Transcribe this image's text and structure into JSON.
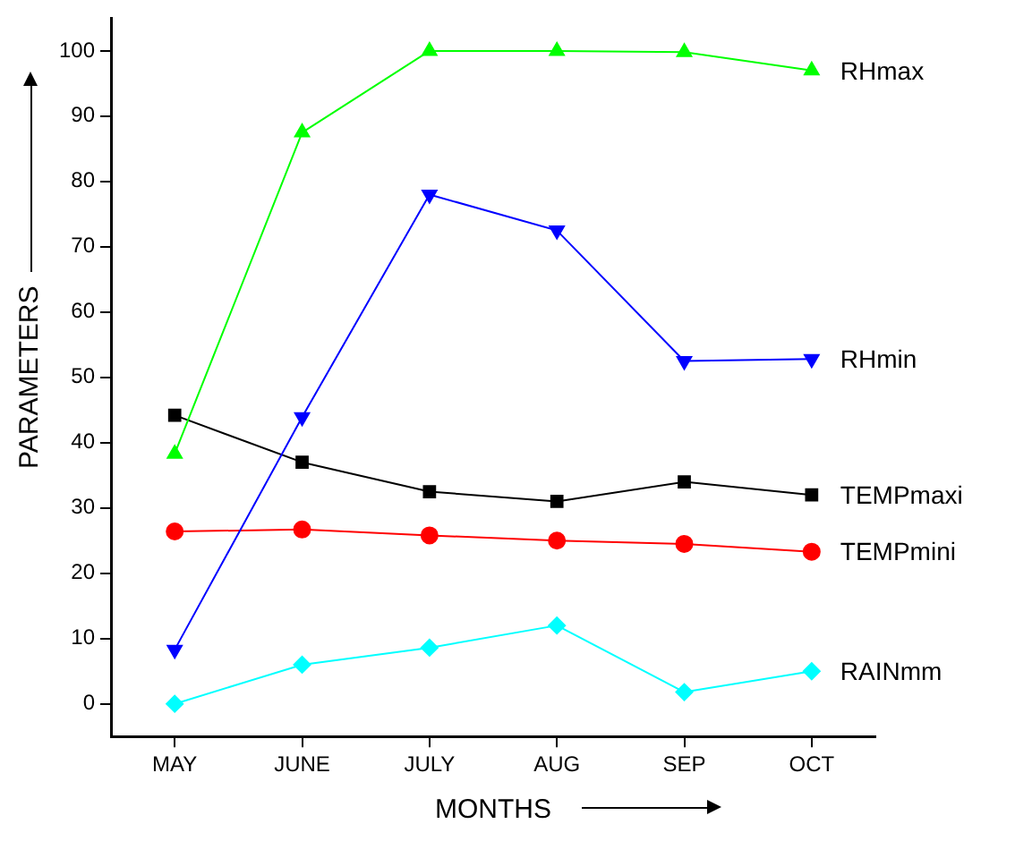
{
  "chart_data": {
    "type": "line",
    "xlabel": "MONTHS",
    "ylabel": "PARAMETERS",
    "categories": [
      "MAY",
      "JUNE",
      "JULY",
      "AUG",
      "SEP",
      "OCT"
    ],
    "series": [
      {
        "name": "RHmax",
        "color": "#00ff00",
        "marker": "triangle",
        "values": [
          38.3,
          87.5,
          100,
          100,
          99.8,
          97
        ]
      },
      {
        "name": "RHmin",
        "color": "#0000ff",
        "marker": "triangle-down",
        "values": [
          8.3,
          43.9,
          78,
          72.5,
          52.5,
          52.8
        ]
      },
      {
        "name": "TEMPmaxi",
        "color": "#000000",
        "marker": "square",
        "values": [
          44.2,
          37,
          32.5,
          31,
          34,
          32
        ]
      },
      {
        "name": "TEMPmini",
        "color": "#ff0000",
        "marker": "circle",
        "values": [
          26.4,
          26.7,
          25.8,
          25,
          24.5,
          23.3
        ]
      },
      {
        "name": "RAINmm",
        "color": "#00ffff",
        "marker": "diamond",
        "values": [
          0,
          6,
          8.6,
          12,
          1.8,
          5
        ]
      }
    ],
    "ylim": [
      -5,
      105
    ],
    "yticks": [
      0,
      10,
      20,
      30,
      40,
      50,
      60,
      70,
      80,
      90,
      100
    ],
    "grid": false,
    "legend": false
  }
}
